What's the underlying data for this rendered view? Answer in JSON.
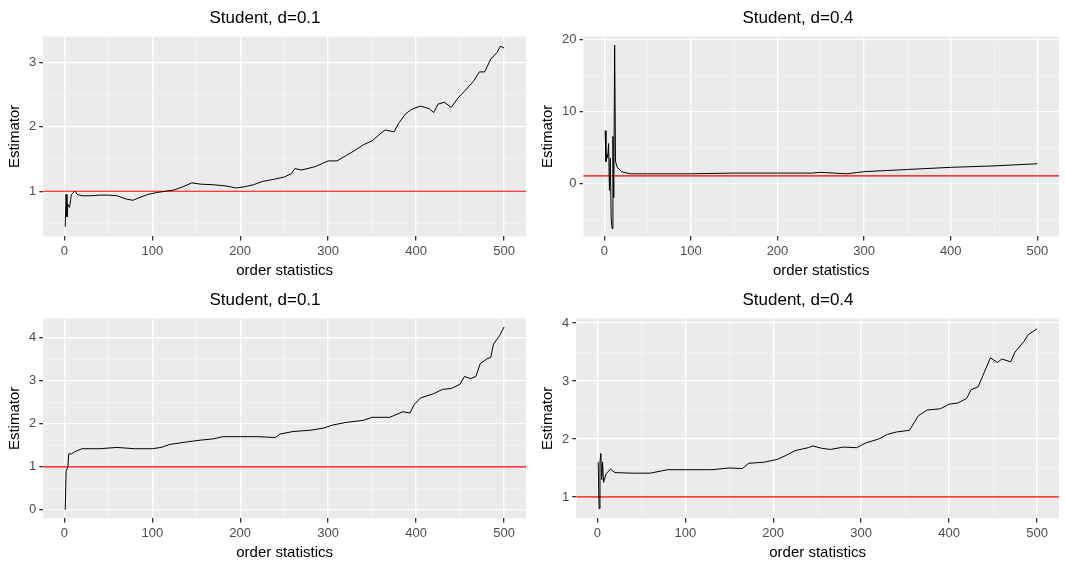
{
  "chart_data": [
    {
      "type": "line",
      "title": "Student, d=0.1",
      "xlabel": "order statistics",
      "ylabel": "Estimator",
      "xlim": [
        -24,
        525
      ],
      "xticks": [
        0,
        {
          "value": 50,
          "label": null
        },
        100,
        {
          "value": 150,
          "label": null
        },
        200,
        {
          "value": 250,
          "label": null
        },
        300,
        {
          "value": 350,
          "label": null
        },
        400,
        {
          "value": 450,
          "label": null
        },
        500
      ],
      "ylim": [
        0.3,
        3.4
      ],
      "yticks": [
        {
          "value": 0.5,
          "label": null
        },
        1,
        {
          "value": 1.5,
          "label": null
        },
        2,
        {
          "value": 2.5,
          "label": null
        },
        3
      ],
      "grid": true,
      "marker": "none",
      "ref_lines": [
        {
          "axis": "y",
          "value": 1,
          "color": "#ff0000"
        }
      ],
      "series": [
        {
          "color": "#000000",
          "x": [
            1,
            2,
            3,
            4,
            6,
            8,
            12,
            15,
            20,
            30,
            40,
            50,
            60,
            70,
            78,
            85,
            95,
            105,
            115,
            125,
            135,
            145,
            155,
            170,
            185,
            195,
            205,
            215,
            225,
            240,
            250,
            258,
            262,
            270,
            285,
            300,
            310,
            320,
            330,
            340,
            350,
            360,
            365,
            375,
            380,
            388,
            395,
            405,
            415,
            420,
            425,
            432,
            440,
            448,
            455,
            465,
            472,
            478,
            485,
            492,
            496,
            500
          ],
          "values": [
            0.45,
            0.95,
            0.6,
            0.8,
            0.75,
            0.95,
            1.0,
            0.95,
            0.93,
            0.93,
            0.94,
            0.94,
            0.93,
            0.88,
            0.86,
            0.9,
            0.95,
            0.98,
            1.0,
            1.02,
            1.07,
            1.13,
            1.11,
            1.1,
            1.08,
            1.05,
            1.07,
            1.1,
            1.15,
            1.19,
            1.22,
            1.27,
            1.35,
            1.33,
            1.38,
            1.47,
            1.47,
            1.55,
            1.63,
            1.72,
            1.78,
            1.9,
            1.95,
            1.92,
            2.05,
            2.2,
            2.27,
            2.32,
            2.28,
            2.22,
            2.35,
            2.38,
            2.3,
            2.45,
            2.55,
            2.7,
            2.85,
            2.85,
            3.05,
            3.15,
            3.25,
            3.22
          ]
        }
      ]
    },
    {
      "type": "line",
      "title": "Student, d=0.4",
      "xlabel": "order statistics",
      "ylabel": "Estimator",
      "xlim": [
        -24,
        525
      ],
      "xticks": [
        0,
        {
          "value": 50,
          "label": null
        },
        100,
        {
          "value": 150,
          "label": null
        },
        200,
        {
          "value": 250,
          "label": null
        },
        300,
        {
          "value": 350,
          "label": null
        },
        400,
        {
          "value": 450,
          "label": null
        },
        500
      ],
      "ylim": [
        -7.4,
        20.4
      ],
      "yticks": [
        {
          "value": -5,
          "label": null
        },
        0,
        {
          "value": 5,
          "label": null
        },
        10,
        {
          "value": 15,
          "label": null
        },
        20
      ],
      "grid": true,
      "marker": "none",
      "ref_lines": [
        {
          "axis": "y",
          "value": 1,
          "color": "#ff0000"
        }
      ],
      "series": [
        {
          "color": "#000000",
          "x": [
            1,
            2,
            3,
            4,
            5,
            6,
            7,
            8,
            9,
            10,
            11,
            12,
            13,
            15,
            20,
            30,
            50,
            100,
            150,
            200,
            240,
            250,
            280,
            300,
            350,
            400,
            450,
            500
          ],
          "values": [
            7.3,
            3,
            4,
            3.5,
            5.5,
            -1,
            3.5,
            -5,
            -6.3,
            6.5,
            -2,
            19.2,
            3,
            2.2,
            1.6,
            1.3,
            1.3,
            1.3,
            1.4,
            1.4,
            1.4,
            1.5,
            1.3,
            1.6,
            1.9,
            2.2,
            2.4,
            2.7
          ]
        }
      ]
    },
    {
      "type": "line",
      "title": "Student, d=0.1",
      "xlabel": "order statistics",
      "ylabel": "Estimator",
      "xlim": [
        -24,
        525
      ],
      "xticks": [
        0,
        {
          "value": 50,
          "label": null
        },
        100,
        {
          "value": 150,
          "label": null
        },
        200,
        {
          "value": 250,
          "label": null
        },
        300,
        {
          "value": 350,
          "label": null
        },
        400,
        {
          "value": 450,
          "label": null
        },
        500
      ],
      "ylim": [
        -0.2,
        4.45
      ],
      "yticks": [
        0,
        {
          "value": 0.5,
          "label": null
        },
        1,
        {
          "value": 1.5,
          "label": null
        },
        2,
        {
          "value": 2.5,
          "label": null
        },
        3,
        {
          "value": 3.5,
          "label": null
        },
        4
      ],
      "grid": true,
      "marker": "none",
      "ref_lines": [
        {
          "axis": "y",
          "value": 1,
          "color": "#ff0000"
        }
      ],
      "series": [
        {
          "color": "#000000",
          "x": [
            1,
            2,
            4,
            5,
            8,
            12,
            20,
            40,
            60,
            80,
            100,
            110,
            120,
            140,
            155,
            170,
            180,
            200,
            220,
            240,
            245,
            260,
            280,
            295,
            305,
            320,
            340,
            350,
            370,
            385,
            393,
            398,
            405,
            420,
            430,
            440,
            450,
            455,
            462,
            468,
            473,
            480,
            485,
            488,
            495,
            500
          ],
          "values": [
            0,
            0.9,
            1.0,
            1.3,
            1.3,
            1.35,
            1.42,
            1.42,
            1.45,
            1.42,
            1.42,
            1.45,
            1.52,
            1.58,
            1.62,
            1.65,
            1.7,
            1.7,
            1.7,
            1.68,
            1.76,
            1.82,
            1.85,
            1.9,
            1.97,
            2.03,
            2.08,
            2.15,
            2.15,
            2.28,
            2.25,
            2.45,
            2.6,
            2.7,
            2.8,
            2.82,
            2.92,
            3.1,
            3.05,
            3.1,
            3.4,
            3.5,
            3.55,
            3.85,
            4.05,
            4.25
          ]
        }
      ]
    },
    {
      "type": "line",
      "title": "Student, d=0.4",
      "xlabel": "order statistics",
      "ylabel": "Estimator",
      "xlim": [
        -24,
        525
      ],
      "xticks": [
        0,
        {
          "value": 50,
          "label": null
        },
        100,
        {
          "value": 150,
          "label": null
        },
        200,
        {
          "value": 250,
          "label": null
        },
        300,
        {
          "value": 350,
          "label": null
        },
        400,
        {
          "value": 450,
          "label": null
        },
        500
      ],
      "ylim": [
        0.63,
        4.08
      ],
      "yticks": [
        1,
        {
          "value": 1.5,
          "label": null
        },
        2,
        {
          "value": 2.5,
          "label": null
        },
        3,
        {
          "value": 3.5,
          "label": null
        },
        4
      ],
      "grid": true,
      "marker": "none",
      "ref_lines": [
        {
          "axis": "y",
          "value": 1,
          "color": "#ff0000"
        }
      ],
      "series": [
        {
          "color": "#000000",
          "x": [
            1,
            2,
            3,
            4,
            5,
            6,
            7,
            10,
            15,
            20,
            40,
            60,
            80,
            100,
            130,
            150,
            165,
            172,
            190,
            205,
            215,
            225,
            240,
            245,
            255,
            265,
            280,
            295,
            305,
            320,
            330,
            340,
            355,
            365,
            375,
            390,
            400,
            410,
            420,
            425,
            433,
            440,
            447,
            455,
            460,
            470,
            475,
            485,
            490,
            500
          ],
          "values": [
            1.6,
            0.8,
            1.6,
            1.75,
            1.3,
            1.6,
            1.25,
            1.4,
            1.48,
            1.42,
            1.41,
            1.41,
            1.47,
            1.47,
            1.47,
            1.5,
            1.49,
            1.58,
            1.6,
            1.65,
            1.72,
            1.8,
            1.85,
            1.88,
            1.84,
            1.82,
            1.86,
            1.85,
            1.93,
            2.0,
            2.08,
            2.12,
            2.15,
            2.4,
            2.5,
            2.52,
            2.6,
            2.62,
            2.7,
            2.85,
            2.9,
            3.15,
            3.4,
            3.32,
            3.38,
            3.33,
            3.5,
            3.68,
            3.8,
            3.9
          ]
        }
      ]
    }
  ]
}
